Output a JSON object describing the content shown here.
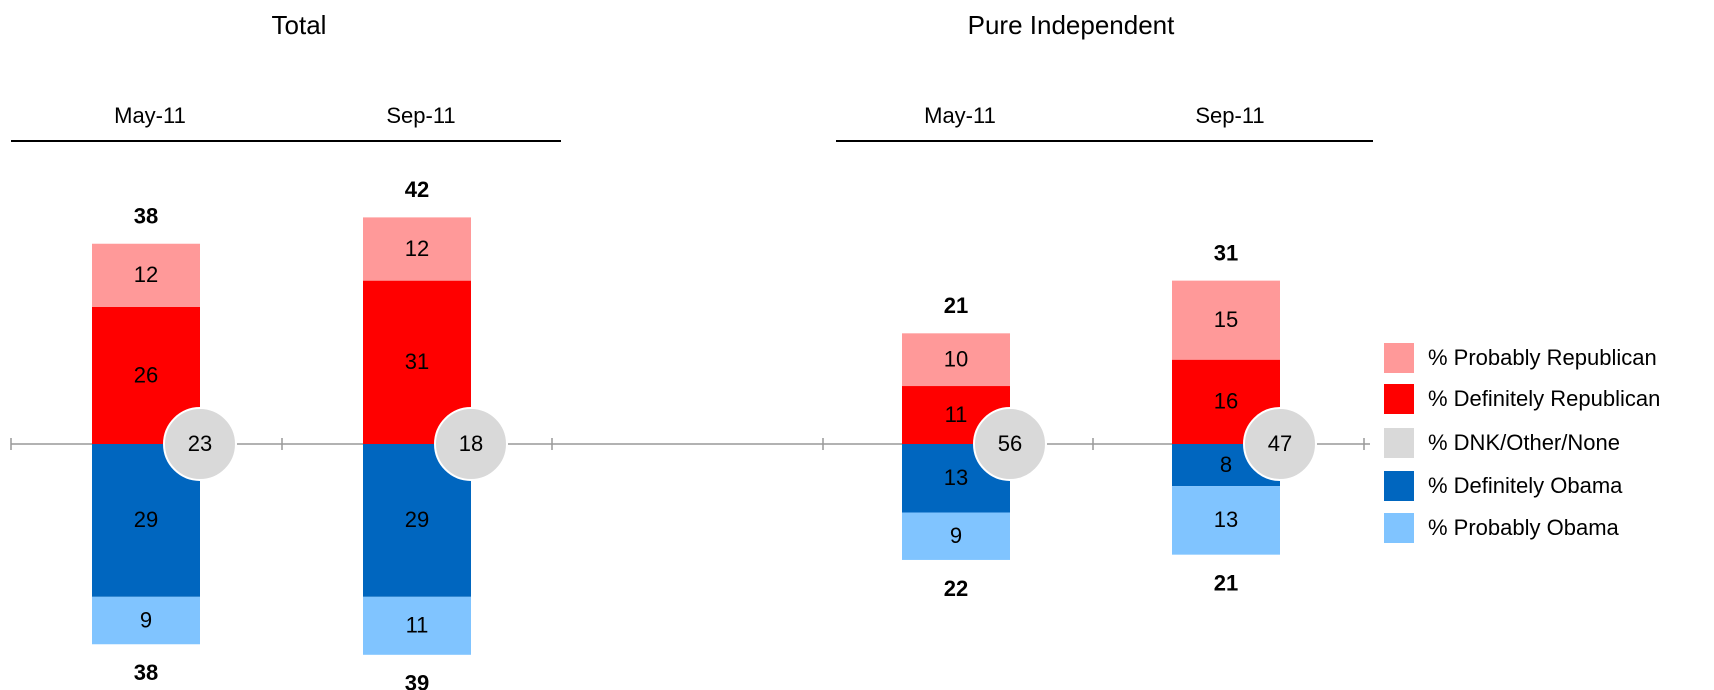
{
  "chart_data": [
    {
      "type": "diverging-bar",
      "title": "Total",
      "categories": [
        "May-11",
        "Sep-11"
      ],
      "series": [
        {
          "name": "% Probably Republican",
          "color": "#ff9999",
          "values": [
            12,
            12
          ]
        },
        {
          "name": "% Definitely Republican",
          "color": "#ff0000",
          "values": [
            26,
            31
          ]
        },
        {
          "name": "% DNK/Other/None",
          "color": "#d9d9d9",
          "values": [
            23,
            18
          ]
        },
        {
          "name": "% Definitely Obama",
          "color": "#0066bf",
          "values": [
            29,
            29
          ]
        },
        {
          "name": "% Probably Obama",
          "color": "#80c4ff",
          "values": [
            9,
            11
          ]
        }
      ],
      "rep_totals": [
        38,
        42
      ],
      "obama_totals": [
        38,
        39
      ]
    },
    {
      "type": "diverging-bar",
      "title": "Pure Independent",
      "categories": [
        "May-11",
        "Sep-11"
      ],
      "series": [
        {
          "name": "% Probably Republican",
          "color": "#ff9999",
          "values": [
            10,
            15
          ]
        },
        {
          "name": "% Definitely Republican",
          "color": "#ff0000",
          "values": [
            11,
            16
          ]
        },
        {
          "name": "% DNK/Other/None",
          "color": "#d9d9d9",
          "values": [
            56,
            47
          ]
        },
        {
          "name": "% Definitely Obama",
          "color": "#0066bf",
          "values": [
            13,
            8
          ]
        },
        {
          "name": "% Probably Obama",
          "color": "#80c4ff",
          "values": [
            9,
            13
          ]
        }
      ],
      "rep_totals": [
        21,
        31
      ],
      "obama_totals": [
        22,
        21
      ]
    }
  ]
}
